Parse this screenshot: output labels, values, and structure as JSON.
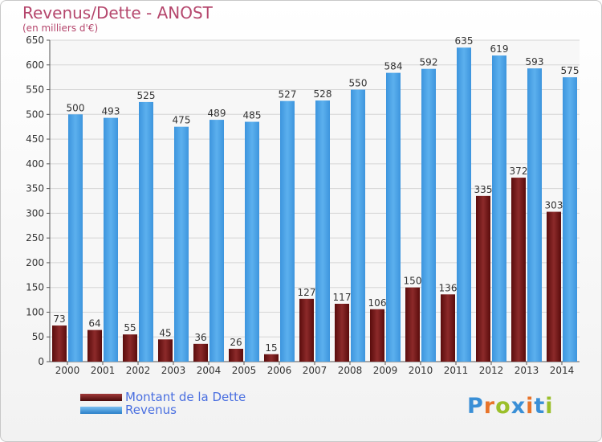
{
  "title": "Revenus/Dette - ANOST",
  "subtitle": "(en milliers d'€)",
  "legend": {
    "debt_label": "Montant de la Dette",
    "revenue_label": "Revenus"
  },
  "logo_text": "Proxiti",
  "colors": {
    "debt": "#7a1e1e",
    "revenue": "#4aa3e8",
    "title": "#b5476d",
    "legend_text": "#4a6fe0"
  },
  "chart_data": {
    "type": "bar",
    "title": "Revenus/Dette - ANOST",
    "subtitle": "(en milliers d'€)",
    "categories": [
      "2000",
      "2001",
      "2002",
      "2003",
      "2004",
      "2005",
      "2006",
      "2007",
      "2008",
      "2009",
      "2010",
      "2011",
      "2012",
      "2013",
      "2014"
    ],
    "series": [
      {
        "name": "Montant de la Dette",
        "values": [
          73,
          64,
          55,
          45,
          36,
          26,
          15,
          127,
          117,
          106,
          150,
          136,
          335,
          372,
          303
        ]
      },
      {
        "name": "Revenus",
        "values": [
          500,
          493,
          525,
          475,
          489,
          485,
          527,
          528,
          550,
          584,
          592,
          635,
          619,
          593,
          575
        ]
      }
    ],
    "ylim": [
      0,
      650
    ],
    "yticks": [
      0,
      50,
      100,
      150,
      200,
      250,
      300,
      350,
      400,
      450,
      500,
      550,
      600,
      650
    ],
    "grid": true,
    "legend_position": "bottom-left"
  }
}
